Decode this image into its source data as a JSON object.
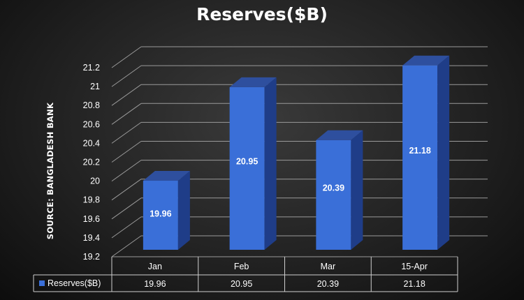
{
  "title": "Reserves($B)",
  "source_label": "SOURCE: BANGLADESH BANK",
  "colors": {
    "bar_front": "#3a6fd8",
    "bar_side": "#1f3d88",
    "bar_top": "#2e4f9e",
    "grid": "#9a9a9a",
    "legend_marker": "#3a6fd8"
  },
  "chart_data": {
    "type": "bar",
    "style": "3d-column",
    "categories": [
      "Jan",
      "Feb",
      "Mar",
      "15-Apr"
    ],
    "series": [
      {
        "name": "Reserves($B)",
        "values": [
          19.96,
          20.95,
          20.39,
          21.18
        ]
      }
    ],
    "ylim": [
      19.2,
      21.2
    ],
    "yticks": [
      "19.2",
      "19.4",
      "19.6",
      "19.8",
      "20",
      "20.2",
      "20.4",
      "20.6",
      "20.8",
      "21",
      "21.2"
    ],
    "data_labels": [
      "19.96",
      "20.95",
      "20.39",
      "21.18"
    ],
    "table_values": [
      "19.96",
      "20.95",
      "20.39",
      "21.18"
    ],
    "grid": true,
    "legend": "data-table"
  }
}
